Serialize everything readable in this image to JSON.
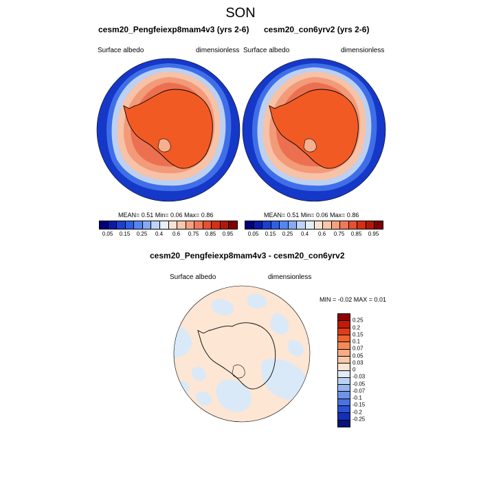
{
  "season": "SON",
  "panels": [
    {
      "title": "cesm20_Pengfeiexp8mam4v3 (yrs 2-6)",
      "left_label": "Surface albedo",
      "right_label": "dimensionless",
      "stats": "MEAN=   0.51  Min=   0.06  Max=   0.86"
    },
    {
      "title": "cesm20_con6yrv2 (yrs 2-6)",
      "left_label": "Surface albedo",
      "right_label": "dimensionless",
      "stats": "MEAN=   0.51  Min=   0.06  Max=   0.86"
    }
  ],
  "colorbar": {
    "colors": [
      "#00007a",
      "#0a1aa8",
      "#1a3fd1",
      "#2f5fe6",
      "#5585f0",
      "#85aaf5",
      "#bdd3f7",
      "#e6eef8",
      "#fbe3d3",
      "#f9c6a9",
      "#f6a17e",
      "#f0785a",
      "#e65030",
      "#d43012",
      "#b01908",
      "#800000"
    ],
    "tick_labels": [
      "0.05",
      "0.15",
      "0.25",
      "0.4",
      "0.6",
      "0.75",
      "0.85",
      "0.95"
    ]
  },
  "diff_panel": {
    "title": "cesm20_Pengfeiexp8mam4v3 - cesm20_con6yrv2",
    "left_label": "Surface albedo",
    "right_label": "dimensionless",
    "minmax": "MIN =  -0.02 MAX =   0.01"
  },
  "diff_colorbar": {
    "colors": [
      "#900000",
      "#c21a0a",
      "#e03c1a",
      "#f0642e",
      "#f48a5a",
      "#f7ac86",
      "#f9c8aa",
      "#fde4d2",
      "#e0ecf8",
      "#bcd2f3",
      "#96b6ee",
      "#6e94e8",
      "#4a72e0",
      "#2a52d8",
      "#1430b8",
      "#06137a"
    ],
    "tick_labels": [
      "0.25",
      "0.2",
      "0.15",
      "0.1",
      "0.07",
      "0.05",
      "0.03",
      "0",
      "-0.03",
      "-0.05",
      "-0.07",
      "-0.1",
      "-0.15",
      "-0.2",
      "-0.25"
    ]
  }
}
